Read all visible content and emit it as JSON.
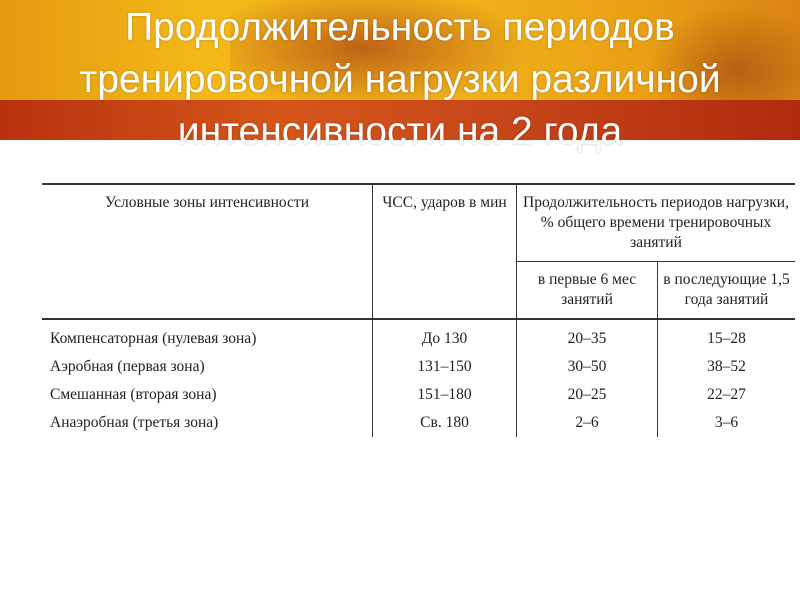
{
  "slide": {
    "title": "Продолжительность периодов тренировочной нагрузки различной интенсивности на 2 года"
  },
  "table": {
    "headers": {
      "zone": "Условные зоны интенсивности",
      "hr": "ЧСС, ударов в мин",
      "duration": "Продолжительность периодов нагрузки, % общего времени тренировочных занятий",
      "first6": "в первые 6 мес занятий",
      "next15": "в последующие 1,5 года занятий"
    },
    "rows": [
      {
        "zone": "Компенсаторная (нулевая зона)",
        "hr": "До 130",
        "first6": "20–35",
        "next15": "15–28"
      },
      {
        "zone": "Аэробная (первая зона)",
        "hr": "131–150",
        "first6": "30–50",
        "next15": "38–52"
      },
      {
        "zone": "Смешанная (вторая зона)",
        "hr": "151–180",
        "first6": "20–25",
        "next15": "22–27"
      },
      {
        "zone": "Анаэробная (третья зона)",
        "hr": "Св. 180",
        "first6": "2–6",
        "next15": "3–6"
      }
    ]
  }
}
